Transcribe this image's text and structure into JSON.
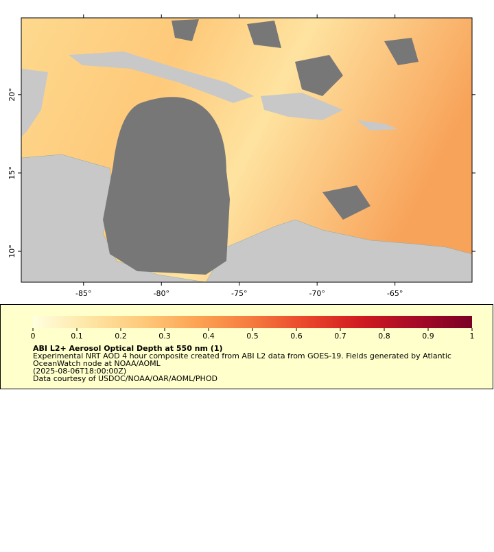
{
  "map": {
    "xlim": [
      -89.0,
      -60.05
    ],
    "ylim": [
      8.03,
      24.9
    ],
    "xticks": [
      {
        "value": -85,
        "label": "-85°"
      },
      {
        "value": -80,
        "label": "-80°"
      },
      {
        "value": -75,
        "label": "-75°"
      },
      {
        "value": -70,
        "label": "-70°"
      },
      {
        "value": -65,
        "label": "-65°"
      }
    ],
    "yticks": [
      {
        "value": 10,
        "label": "10°"
      },
      {
        "value": 15,
        "label": "15°"
      },
      {
        "value": 20,
        "label": "20°"
      }
    ]
  },
  "colorbar": {
    "range": [
      0,
      1
    ],
    "ticks": [
      0,
      0.1,
      0.2,
      0.3,
      0.4,
      0.5,
      0.6,
      0.7,
      0.8,
      0.9,
      1
    ],
    "colors": [
      "#ffffe0",
      "#fee6a5",
      "#fec97a",
      "#fca353",
      "#f57a3e",
      "#e9452a",
      "#cf1a20",
      "#a50a26",
      "#7a0026"
    ]
  },
  "legend": {
    "title": "ABI L2+ Aerosol Optical Depth at 550 nm (1)",
    "lines": [
      "Experimental NRT AOD 4 hour composite created from ABI L2 data from GOES-19. Fields generated by Atlantic",
      "OceanWatch node at NOAA/AOML",
      "(2025-08-06T18:00:00Z)",
      "Data courtesy of USDOC/NOAA/OAR/AOML/PHOD"
    ]
  }
}
